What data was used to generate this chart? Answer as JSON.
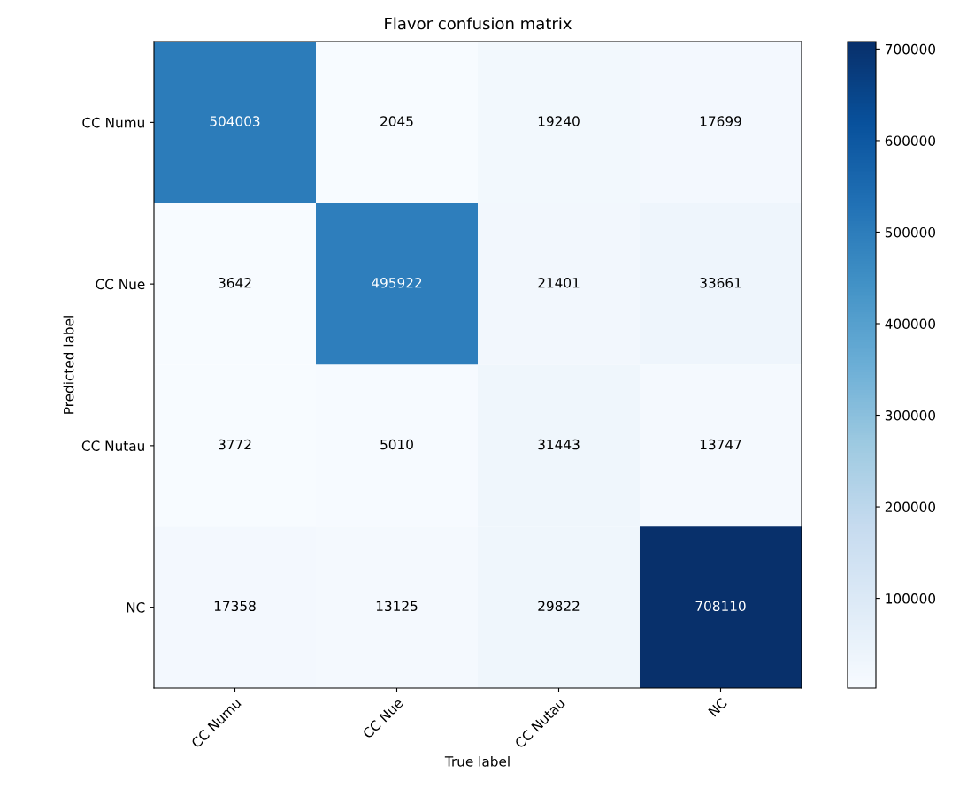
{
  "chart_data": {
    "type": "heatmap",
    "title": "Flavor confusion matrix",
    "xlabel": "True label",
    "ylabel": "Predicted label",
    "categories": [
      "CC Numu",
      "CC Nue",
      "CC Nutau",
      "NC"
    ],
    "y_categories": [
      "CC Numu",
      "CC Nue",
      "CC Nutau",
      "NC"
    ],
    "cells": [
      [
        504003,
        2045,
        19240,
        17699
      ],
      [
        3642,
        495922,
        21401,
        33661
      ],
      [
        3772,
        5010,
        31443,
        13747
      ],
      [
        17358,
        13125,
        29822,
        708110
      ]
    ],
    "data_labels": true,
    "clim": [
      2045,
      708110
    ],
    "cticks": [
      100000,
      200000,
      300000,
      400000,
      500000,
      600000,
      700000
    ]
  }
}
